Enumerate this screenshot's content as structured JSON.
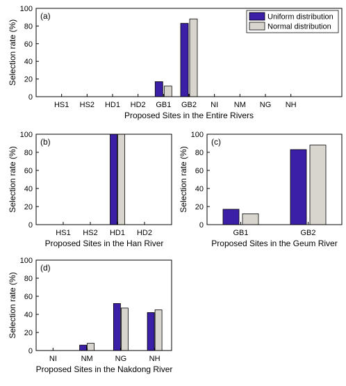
{
  "colors": {
    "uniform": "#3b1fa6",
    "normal": "#d8d5ce",
    "edge": "#000000"
  },
  "legend": {
    "items": [
      "Uniform distribution",
      "Normal distribution"
    ],
    "placement": "top-right",
    "panel": 0
  },
  "chart_data": [
    {
      "type": "bar",
      "panel_label": "(a)",
      "categories": [
        "HS1",
        "HS2",
        "HD1",
        "HD2",
        "GB1",
        "GB2",
        "NI",
        "NM",
        "NG",
        "NH"
      ],
      "series": [
        {
          "name": "Uniform distribution",
          "values": [
            0,
            0,
            0,
            0,
            17,
            83,
            0,
            0,
            0,
            0
          ]
        },
        {
          "name": "Normal distribution",
          "values": [
            0,
            0,
            0,
            0,
            12,
            88,
            0,
            0,
            0,
            0
          ]
        }
      ],
      "xlabel": "Proposed Sites in the Entire Rivers",
      "ylabel": "Selection rate (%)",
      "ylim": [
        0,
        100
      ],
      "yticks": [
        0,
        20,
        40,
        60,
        80,
        100
      ],
      "xlim": [
        0,
        12
      ],
      "grid": false
    },
    {
      "type": "bar",
      "panel_label": "(b)",
      "categories": [
        "HS1",
        "HS2",
        "HD1",
        "HD2"
      ],
      "series": [
        {
          "name": "Uniform distribution",
          "values": [
            0,
            0,
            100,
            0
          ]
        },
        {
          "name": "Normal distribution",
          "values": [
            0,
            0,
            100,
            0
          ]
        }
      ],
      "xlabel": "Proposed Sites in the Han River",
      "ylabel": "Selection rate (%)",
      "ylim": [
        0,
        100
      ],
      "yticks": [
        0,
        20,
        40,
        60,
        80,
        100
      ],
      "xlim": [
        0,
        5
      ],
      "grid": false
    },
    {
      "type": "bar",
      "panel_label": "(c)",
      "categories": [
        "GB1",
        "GB2"
      ],
      "series": [
        {
          "name": "Uniform distribution",
          "values": [
            17,
            83
          ]
        },
        {
          "name": "Normal distribution",
          "values": [
            12,
            88
          ]
        }
      ],
      "xlabel": "Proposed Sites in the Geum River",
      "ylabel": "Selection rate (%)",
      "ylim": [
        0,
        100
      ],
      "yticks": [
        0,
        20,
        40,
        60,
        80,
        100
      ],
      "xlim": [
        0.5,
        2.5
      ],
      "grid": false
    },
    {
      "type": "bar",
      "panel_label": "(d)",
      "categories": [
        "NI",
        "NM",
        "NG",
        "NH"
      ],
      "series": [
        {
          "name": "Uniform distribution",
          "values": [
            0,
            6,
            52,
            42
          ]
        },
        {
          "name": "Normal distribution",
          "values": [
            0,
            8,
            47,
            45
          ]
        }
      ],
      "xlabel": "Proposed Sites in the Nakdong River",
      "ylabel": "Selection rate (%)",
      "ylim": [
        0,
        100
      ],
      "yticks": [
        0,
        20,
        40,
        60,
        80,
        100
      ],
      "xlim": [
        0.5,
        4.5
      ],
      "grid": false
    }
  ]
}
